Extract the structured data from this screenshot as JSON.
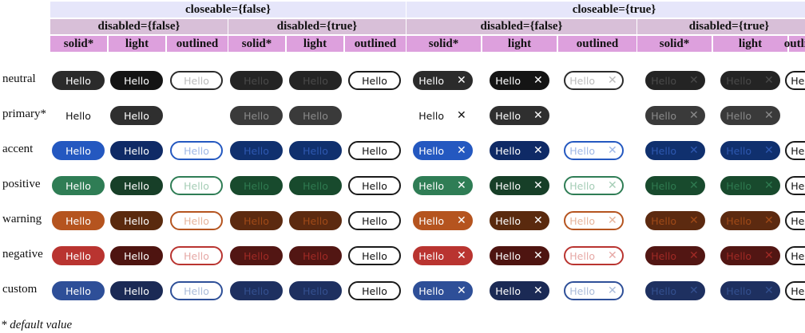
{
  "headers": {
    "closeable": [
      "closeable={false}",
      "closeable={true}"
    ],
    "disabled": [
      "disabled={false}",
      "disabled={true}"
    ],
    "variants": [
      "solid*",
      "light",
      "outlined"
    ]
  },
  "rows": [
    "neutral",
    "primary*",
    "accent",
    "positive",
    "warning",
    "negative",
    "custom"
  ],
  "tag_text": "Hello",
  "close_glyph": "✕",
  "footnote": "* default value",
  "palette": {
    "neutral": {
      "solid": "#2b2b2b",
      "light": "#141414",
      "dim_solid": "#242424",
      "dim_text": "#4a4a4a",
      "outline": "#2b2b2b",
      "outline_text": "#bbbbbb"
    },
    "primary": {
      "solid": "transparent",
      "light": "#2f2f2f",
      "dim_solid": "#3a3a3a",
      "dim_text": "#8a8a8a",
      "outline": "#2b2b2b",
      "outline_text": "#bbbbbb"
    },
    "accent": {
      "solid": "#2458c0",
      "light": "#0f2a66",
      "dim_solid": "#10306e",
      "dim_text": "#2e58b0",
      "outline": "#2458c0",
      "outline_text": "#9fb7e6"
    },
    "positive": {
      "solid": "#2f7d55",
      "light": "#173f28",
      "dim_solid": "#184a2d",
      "dim_text": "#2f7a50",
      "outline": "#2f7d55",
      "outline_text": "#a5cdb6"
    },
    "warning": {
      "solid": "#b5541f",
      "light": "#5a2a0e",
      "dim_solid": "#5c2a10",
      "dim_text": "#a04a18",
      "outline": "#b5541f",
      "outline_text": "#e6b39a"
    },
    "negative": {
      "solid": "#b93430",
      "light": "#4e1410",
      "dim_solid": "#521613",
      "dim_text": "#a02a25",
      "outline": "#b93430",
      "outline_text": "#e6a8a5"
    },
    "custom": {
      "solid": "#2e4f98",
      "light": "#1b2a55",
      "dim_solid": "#1e3060",
      "dim_text": "#34508f",
      "outline": "#2e4f98",
      "outline_text": "#aabbd9"
    }
  }
}
